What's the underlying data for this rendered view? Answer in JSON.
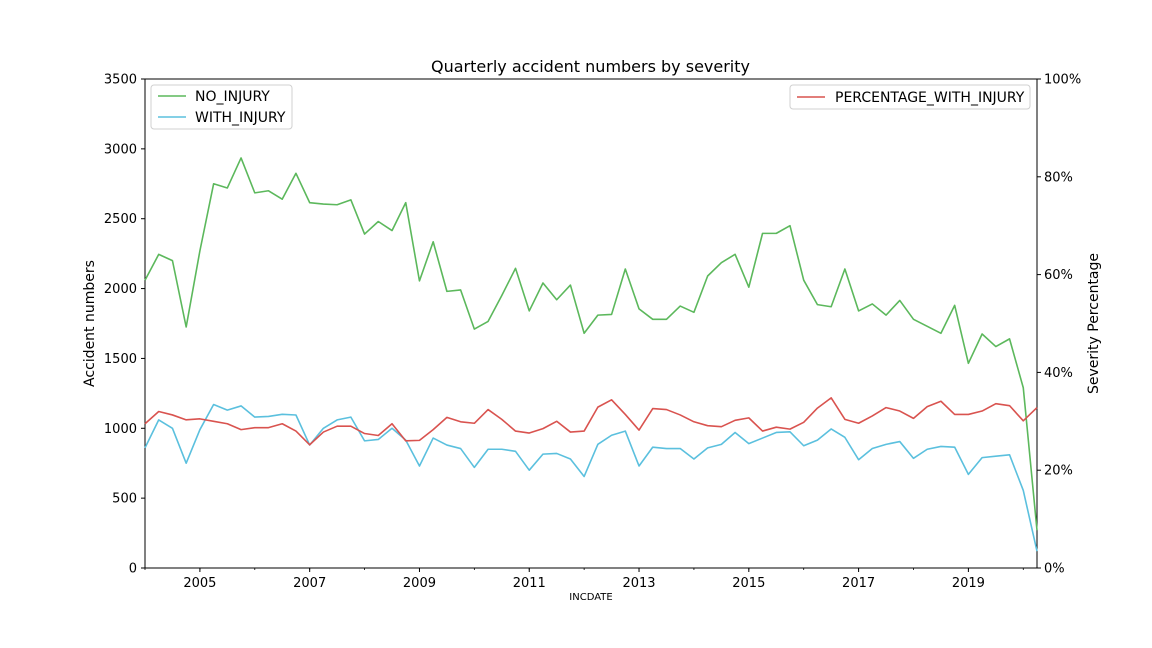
{
  "chart_data": {
    "type": "line",
    "title": "Quarterly accident numbers by severity",
    "xlabel": "INCDATE",
    "ylabel": "Accident numbers",
    "y2label": "Severity Percentage",
    "ylim": [
      0,
      3500
    ],
    "y2lim": [
      0,
      100
    ],
    "xlim": [
      2004.0,
      2020.25
    ],
    "yticks": [
      "0",
      "500",
      "1000",
      "1500",
      "2000",
      "2500",
      "3000",
      "3500"
    ],
    "y2ticks": [
      "0%",
      "20%",
      "40%",
      "60%",
      "80%",
      "100%"
    ],
    "xticks": [
      "2005",
      "2007",
      "2009",
      "2011",
      "2013",
      "2015",
      "2017",
      "2019"
    ],
    "legend_left_placement": "top-left",
    "legend_right_placement": "top-right",
    "grid": false,
    "x": [
      2004.0,
      2004.25,
      2004.5,
      2004.75,
      2005.0,
      2005.25,
      2005.5,
      2005.75,
      2006.0,
      2006.25,
      2006.5,
      2006.75,
      2007.0,
      2007.25,
      2007.5,
      2007.75,
      2008.0,
      2008.25,
      2008.5,
      2008.75,
      2009.0,
      2009.25,
      2009.5,
      2009.75,
      2010.0,
      2010.25,
      2010.5,
      2010.75,
      2011.0,
      2011.25,
      2011.5,
      2011.75,
      2012.0,
      2012.25,
      2012.5,
      2012.75,
      2013.0,
      2013.25,
      2013.5,
      2013.75,
      2014.0,
      2014.25,
      2014.5,
      2014.75,
      2015.0,
      2015.25,
      2015.5,
      2015.75,
      2016.0,
      2016.25,
      2016.5,
      2016.75,
      2017.0,
      2017.25,
      2017.5,
      2017.75,
      2018.0,
      2018.25,
      2018.5,
      2018.75,
      2019.0,
      2019.25,
      2019.5,
      2019.75,
      2020.0,
      2020.25
    ],
    "series": [
      {
        "name": "NO_INJURY",
        "axis": "left",
        "color": "#5cb85c",
        "values": [
          2060,
          2245,
          2200,
          1725,
          2270,
          2750,
          2720,
          2935,
          2685,
          2700,
          2640,
          2825,
          2615,
          2605,
          2600,
          2635,
          2390,
          2480,
          2415,
          2615,
          2055,
          2335,
          1980,
          1990,
          1710,
          1765,
          1950,
          2145,
          1840,
          2040,
          1920,
          2025,
          1680,
          1810,
          1815,
          2140,
          1855,
          1780,
          1780,
          1875,
          1830,
          2090,
          2185,
          2245,
          2010,
          2395,
          2395,
          2450,
          2060,
          1885,
          1870,
          2140,
          1840,
          1890,
          1810,
          1915,
          1780,
          1730,
          1680,
          1880,
          1465,
          1675,
          1585,
          1640,
          1290,
          270
        ]
      },
      {
        "name": "WITH_INJURY",
        "axis": "left",
        "color": "#5bc0de",
        "values": [
          860,
          1060,
          1000,
          750,
          990,
          1170,
          1130,
          1160,
          1080,
          1085,
          1100,
          1095,
          880,
          1000,
          1060,
          1080,
          910,
          920,
          1000,
          915,
          730,
          930,
          880,
          855,
          720,
          850,
          850,
          835,
          700,
          815,
          820,
          780,
          655,
          885,
          950,
          980,
          730,
          865,
          855,
          855,
          780,
          860,
          885,
          970,
          890,
          930,
          970,
          975,
          875,
          915,
          995,
          935,
          775,
          855,
          885,
          905,
          785,
          850,
          870,
          865,
          670,
          790,
          800,
          810,
          555,
          120
        ]
      },
      {
        "name": "PERCENTAGE_WITH_INJURY",
        "axis": "right",
        "color": "#d9534f",
        "values": [
          29.5,
          32.0,
          31.3,
          30.3,
          30.5,
          30.0,
          29.5,
          28.3,
          28.7,
          28.7,
          29.5,
          28.0,
          25.2,
          27.8,
          29.0,
          29.0,
          27.5,
          27.1,
          29.5,
          26.0,
          26.1,
          28.3,
          30.8,
          29.9,
          29.6,
          32.4,
          30.4,
          28.0,
          27.6,
          28.5,
          30.0,
          27.8,
          28.0,
          32.9,
          34.4,
          31.4,
          28.2,
          32.6,
          32.4,
          31.3,
          29.9,
          29.1,
          28.9,
          30.2,
          30.7,
          28.0,
          28.8,
          28.4,
          29.8,
          32.7,
          34.8,
          30.4,
          29.6,
          31.1,
          32.8,
          32.1,
          30.6,
          33.0,
          34.1,
          31.4,
          31.4,
          32.1,
          33.6,
          33.2,
          30.1,
          32.8
        ]
      }
    ]
  }
}
